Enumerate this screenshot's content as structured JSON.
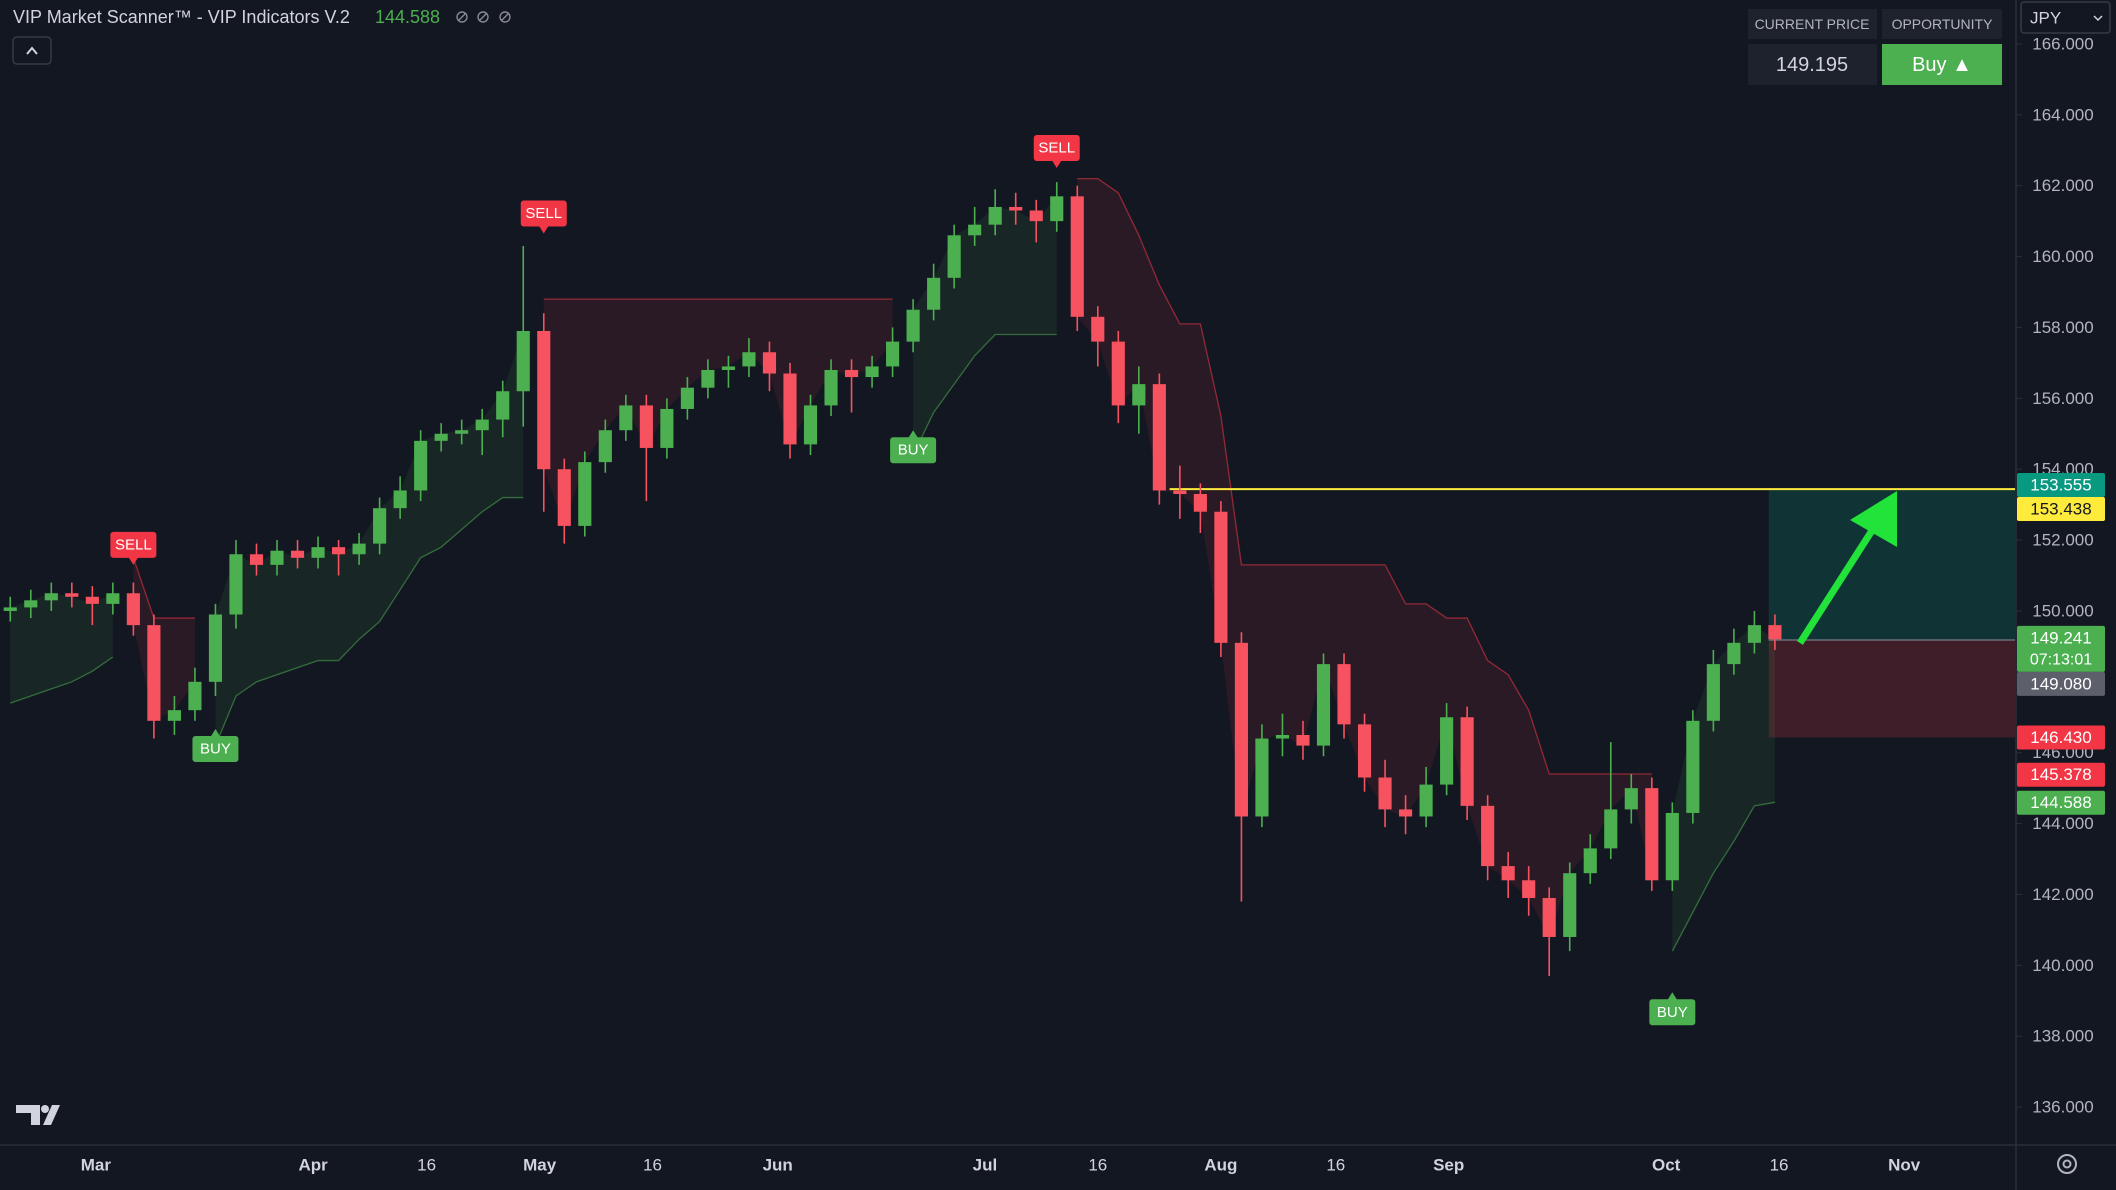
{
  "ui": {
    "header": {
      "title": "VIP Market Scanner™ - VIP Indicators V.2",
      "value": 144.588
    },
    "panel": {
      "current_price_label": "CURRENT PRICE",
      "opportunity_label": "OPPORTUNITY",
      "current_price": 149.195,
      "opportunity": "Buy ▲"
    },
    "currency": "JPY"
  },
  "chart_data": {
    "type": "candlestick",
    "up_color": "#4caf50",
    "down_color": "#f7525f",
    "open": [
      150.0,
      150.1,
      150.3,
      150.5,
      150.4,
      150.2,
      150.5,
      149.6,
      146.9,
      147.2,
      148.0,
      149.9,
      151.6,
      151.3,
      151.7,
      151.5,
      151.8,
      151.6,
      151.9,
      152.9,
      153.4,
      154.8,
      155.0,
      155.1,
      155.4,
      156.2,
      157.9,
      154.0,
      152.4,
      154.2,
      155.1,
      155.8,
      154.6,
      155.7,
      156.3,
      156.8,
      156.9,
      157.3,
      156.7,
      154.7,
      155.8,
      156.8,
      156.6,
      156.9,
      157.6,
      158.5,
      159.4,
      160.6,
      160.9,
      161.4,
      161.3,
      161.0,
      161.7,
      158.3,
      157.6,
      155.8,
      156.4,
      153.4,
      153.3,
      152.8,
      149.1,
      144.2,
      146.4,
      146.5,
      146.2,
      148.5,
      146.8,
      145.3,
      144.4,
      144.2,
      145.1,
      147.0,
      144.5,
      142.8,
      142.4,
      141.9,
      140.8,
      142.6,
      143.3,
      144.4,
      145.0,
      142.4,
      144.3,
      146.9,
      148.5,
      149.1,
      149.6
    ],
    "high": [
      150.4,
      150.6,
      150.8,
      150.8,
      150.7,
      150.8,
      150.8,
      149.9,
      147.6,
      148.4,
      150.2,
      152.0,
      151.9,
      152.0,
      152.0,
      152.1,
      152.0,
      152.2,
      153.2,
      153.8,
      155.1,
      155.3,
      155.4,
      155.7,
      156.5,
      160.3,
      158.4,
      154.3,
      154.5,
      155.4,
      156.1,
      156.1,
      156.0,
      156.6,
      157.1,
      157.2,
      157.7,
      157.6,
      157.0,
      156.1,
      157.1,
      157.1,
      157.2,
      158.0,
      158.8,
      159.8,
      160.9,
      161.4,
      161.9,
      161.8,
      161.6,
      162.1,
      162.0,
      158.6,
      157.9,
      156.9,
      156.7,
      154.1,
      153.6,
      153.1,
      149.4,
      146.8,
      147.1,
      146.9,
      148.8,
      148.8,
      147.1,
      145.8,
      144.8,
      145.6,
      147.4,
      147.3,
      144.8,
      143.2,
      142.8,
      142.2,
      142.9,
      143.7,
      146.3,
      145.4,
      145.3,
      144.6,
      147.2,
      148.9,
      149.5,
      150.0,
      149.9
    ],
    "low": [
      149.7,
      149.8,
      150.0,
      150.1,
      149.6,
      149.9,
      149.3,
      146.4,
      146.5,
      146.9,
      147.6,
      149.5,
      151.0,
      151.0,
      151.2,
      151.2,
      151.0,
      151.3,
      151.6,
      152.6,
      153.1,
      154.5,
      154.7,
      154.4,
      154.9,
      155.2,
      152.8,
      151.9,
      152.1,
      153.9,
      154.8,
      153.1,
      154.3,
      155.4,
      156.0,
      156.3,
      156.6,
      156.2,
      154.3,
      154.4,
      155.5,
      155.6,
      156.3,
      156.6,
      157.3,
      158.2,
      159.1,
      160.3,
      160.6,
      160.9,
      160.4,
      160.7,
      157.9,
      156.9,
      155.3,
      155.0,
      153.0,
      152.6,
      152.2,
      148.7,
      141.8,
      143.9,
      145.9,
      145.8,
      145.9,
      146.4,
      144.9,
      143.9,
      143.7,
      143.9,
      144.8,
      144.1,
      142.4,
      141.9,
      141.4,
      139.7,
      140.4,
      142.3,
      143.0,
      144.0,
      142.1,
      142.1,
      144.0,
      146.6,
      148.2,
      148.8,
      148.9
    ],
    "close": [
      150.1,
      150.3,
      150.5,
      150.4,
      150.2,
      150.5,
      149.6,
      146.9,
      147.2,
      148.0,
      149.9,
      151.6,
      151.3,
      151.7,
      151.5,
      151.8,
      151.6,
      151.9,
      152.9,
      153.4,
      154.8,
      155.0,
      155.1,
      155.4,
      156.2,
      157.9,
      154.0,
      152.4,
      154.2,
      155.1,
      155.8,
      154.6,
      155.7,
      156.3,
      156.8,
      156.9,
      157.3,
      156.7,
      154.7,
      155.8,
      156.8,
      156.6,
      156.9,
      157.6,
      158.5,
      159.4,
      160.6,
      160.9,
      161.4,
      161.3,
      161.0,
      161.7,
      158.3,
      157.6,
      155.8,
      156.4,
      153.4,
      153.3,
      152.8,
      149.1,
      144.2,
      146.4,
      146.5,
      146.2,
      148.5,
      146.8,
      145.3,
      144.4,
      144.2,
      145.1,
      147.0,
      144.5,
      142.8,
      142.4,
      141.9,
      140.8,
      142.6,
      143.3,
      144.4,
      145.0,
      142.4,
      144.3,
      146.9,
      148.5,
      149.1,
      149.6,
      149.2
    ],
    "trail": [
      147.4,
      147.6,
      147.8,
      148.0,
      148.3,
      148.7,
      151.5,
      149.8,
      149.8,
      149.8,
      146.2,
      147.6,
      148.0,
      148.2,
      148.4,
      148.6,
      148.6,
      149.2,
      149.7,
      150.6,
      151.5,
      151.8,
      152.3,
      152.8,
      153.2,
      153.2,
      158.8,
      158.8,
      158.8,
      158.8,
      158.8,
      158.8,
      158.8,
      158.8,
      158.8,
      158.8,
      158.8,
      158.8,
      158.8,
      158.8,
      158.8,
      158.8,
      158.8,
      158.8,
      154.4,
      155.6,
      156.4,
      157.2,
      157.8,
      157.8,
      157.8,
      157.8,
      162.2,
      162.2,
      161.8,
      160.6,
      159.2,
      158.1,
      158.1,
      155.5,
      151.3,
      151.3,
      151.3,
      151.3,
      151.3,
      151.3,
      151.3,
      151.3,
      150.2,
      150.2,
      149.8,
      149.8,
      148.6,
      148.2,
      147.2,
      145.4,
      145.4,
      145.4,
      145.4,
      145.4,
      145.4,
      140.4,
      141.5,
      142.6,
      143.5,
      144.5,
      144.6
    ],
    "trail_up_color": "#4caf50",
    "trail_down_color": "#f23645",
    "signals": [
      {
        "label": "SELL",
        "index": 6,
        "price": 151.3,
        "color": "#f23645"
      },
      {
        "label": "BUY",
        "index": 10,
        "price": 146.67,
        "color": "#4caf50"
      },
      {
        "label": "SELL",
        "index": 26,
        "price": 160.65,
        "color": "#f23645"
      },
      {
        "label": "BUY",
        "index": 44,
        "price": 155.1,
        "color": "#4caf50"
      },
      {
        "label": "SELL",
        "index": 51,
        "price": 162.5,
        "color": "#f23645"
      },
      {
        "label": "BUY",
        "index": 81,
        "price": 139.24,
        "color": "#4caf50"
      }
    ],
    "target_line": {
      "start": 56.5,
      "value": 153.438,
      "color": "#ffeb3b"
    },
    "trade_zone": {
      "start": 85.7,
      "target": 153.438,
      "entry": 149.18,
      "stop": 146.43
    },
    "xlim": [
      -0.5,
      97.7
    ],
    "xticks": [
      {
        "value": 4.17,
        "label": "Mar"
      },
      {
        "value": 14.76,
        "label": "Apr"
      },
      {
        "value": 20.29,
        "label": "16"
      },
      {
        "value": 25.8,
        "label": "May"
      },
      {
        "value": 31.3,
        "label": "16"
      },
      {
        "value": 37.4,
        "label": "Jun"
      },
      {
        "value": 47.5,
        "label": "Jul"
      },
      {
        "value": 53.0,
        "label": "16"
      },
      {
        "value": 59.0,
        "label": "Aug"
      },
      {
        "value": 64.6,
        "label": "16"
      },
      {
        "value": 70.1,
        "label": "Sep"
      },
      {
        "value": 80.7,
        "label": "Oct"
      },
      {
        "value": 86.2,
        "label": "16"
      },
      {
        "value": 92.3,
        "label": "Nov"
      }
    ],
    "ylim": [
      134.93,
      167.24
    ],
    "yticks": [
      {
        "value": 136,
        "label": "136.000"
      },
      {
        "value": 138,
        "label": "138.000"
      },
      {
        "value": 140,
        "label": "140.000"
      },
      {
        "value": 142,
        "label": "142.000"
      },
      {
        "value": 144,
        "label": "144.000"
      },
      {
        "value": 146,
        "label": "146.000"
      },
      {
        "value": 148,
        "label": "148.000"
      },
      {
        "value": 150,
        "label": "150.000"
      },
      {
        "value": 152,
        "label": "152.000"
      },
      {
        "value": 154,
        "label": "154.000"
      },
      {
        "value": 156,
        "label": "156.000"
      },
      {
        "value": 158,
        "label": "158.000"
      },
      {
        "value": 160,
        "label": "160.000"
      },
      {
        "value": 162,
        "label": "162.000"
      },
      {
        "value": 164,
        "label": "164.000"
      },
      {
        "value": 166,
        "label": "166.000"
      }
    ],
    "grid": false,
    "price_labels": [
      {
        "value": 153.555,
        "color": "#089981"
      },
      {
        "value": 153.438,
        "color": "#ffeb3b"
      },
      {
        "value": 149.241,
        "color": "#4caf50",
        "countdown": "07:13:01"
      },
      {
        "value": 149.08,
        "label": "149.080",
        "color": "#5d606b"
      },
      {
        "value": 146.43,
        "label": "146.430",
        "color": "#f23645"
      },
      {
        "value": 145.378,
        "color": "#f23645"
      },
      {
        "value": 144.588,
        "color": "#4caf50"
      }
    ]
  }
}
